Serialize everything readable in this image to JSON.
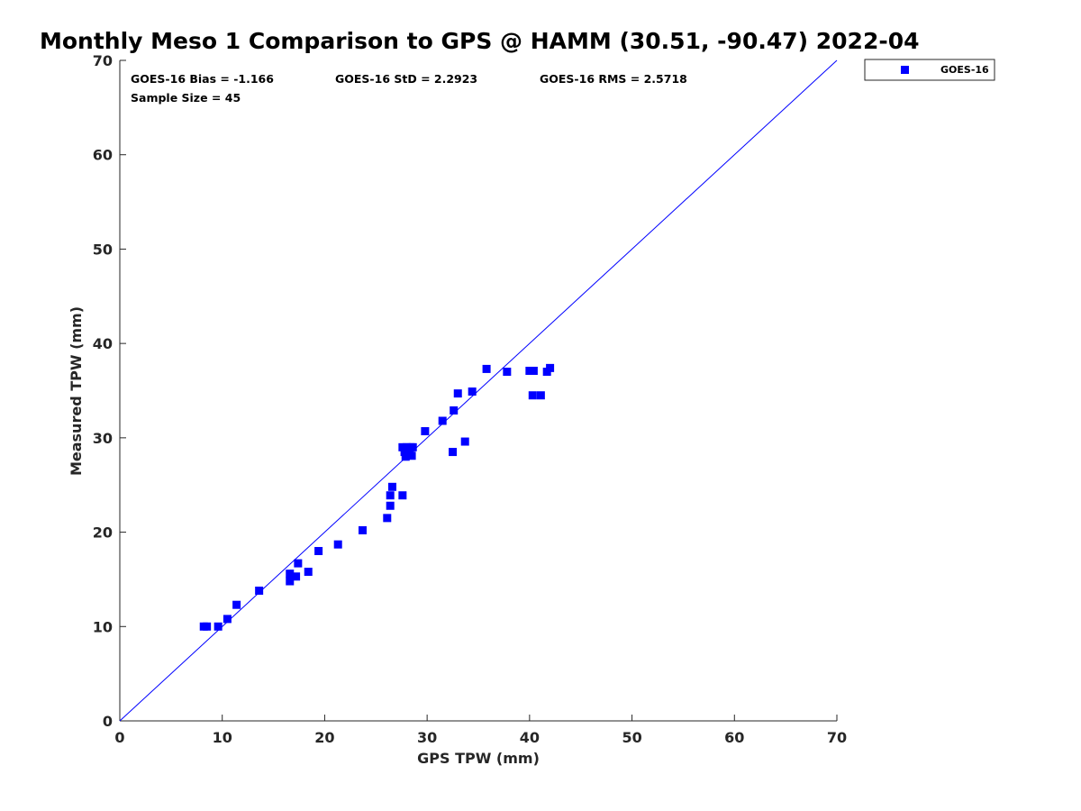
{
  "chart_data": {
    "type": "scatter",
    "title": "Monthly Meso 1 Comparison to GPS @ HAMM (30.51, -90.47) 2022-04",
    "xlabel": "GPS TPW (mm)",
    "ylabel": "Measured TPW (mm)",
    "xlim": [
      0,
      70
    ],
    "ylim": [
      0,
      70
    ],
    "xticks": [
      "0",
      "10",
      "20",
      "30",
      "40",
      "50",
      "60",
      "70"
    ],
    "yticks": [
      "0",
      "10",
      "20",
      "30",
      "40",
      "50",
      "60",
      "70"
    ],
    "grid": false,
    "legend_position": "outside top-right",
    "reference_line": {
      "x": [
        0,
        70
      ],
      "y": [
        0,
        70
      ],
      "color": "#0000ff"
    },
    "stats": {
      "bias": "GOES-16 Bias = -1.166",
      "std": "GOES-16 StD = 2.2923",
      "rms": "GOES-16 RMS = 2.5718",
      "sample": "Sample Size = 45"
    },
    "series": [
      {
        "name": "GOES-16",
        "color": "#0000ff",
        "marker": "square",
        "x": [
          8.2,
          8.5,
          9.6,
          10.5,
          11.4,
          13.6,
          16.6,
          16.6,
          17.2,
          17.4,
          18.4,
          19.4,
          21.3,
          23.7,
          26.1,
          26.4,
          26.4,
          26.6,
          27.6,
          27.6,
          27.8,
          27.9,
          28.0,
          28.1,
          28.2,
          28.4,
          28.5,
          28.6,
          29.8,
          31.5,
          32.5,
          32.6,
          33.0,
          33.7,
          34.4,
          35.8,
          37.8,
          40.0,
          40.3,
          40.4,
          41.1,
          41.7,
          42.0,
          28.3,
          27.9
        ],
        "y": [
          10.0,
          10.0,
          10.0,
          10.8,
          12.3,
          13.8,
          15.6,
          14.8,
          15.3,
          16.7,
          15.8,
          18.0,
          18.7,
          20.2,
          21.5,
          22.8,
          23.9,
          24.8,
          23.9,
          29.0,
          28.5,
          28.0,
          29.0,
          28.3,
          28.6,
          29.0,
          28.1,
          29.0,
          30.7,
          31.8,
          28.5,
          32.9,
          34.7,
          29.6,
          34.9,
          37.3,
          37.0,
          37.1,
          34.5,
          37.1,
          34.5,
          37.0,
          37.4,
          28.7,
          28.7
        ]
      }
    ]
  }
}
